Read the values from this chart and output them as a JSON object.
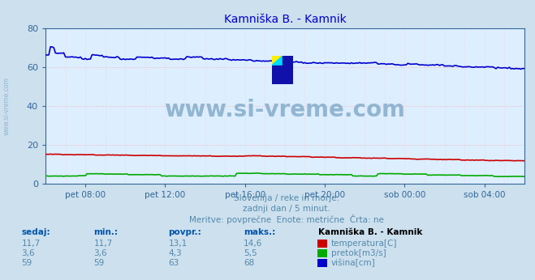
{
  "title": "Kamniška B. - Kamnik",
  "title_color": "#0000cc",
  "bg_color": "#cce0ee",
  "plot_bg_color": "#ddeeff",
  "grid_color_h": "#ffaaaa",
  "grid_color_v": "#ffcccc",
  "watermark_text": "www.si-vreme.com",
  "watermark_color": "#8ab0cc",
  "subtitle_lines": [
    "Slovenija / reke in morje.",
    "zadnji dan / 5 minut.",
    "Meritve: povprečne  Enote: metrične  Črta: ne"
  ],
  "subtitle_color": "#5588aa",
  "xlabel_color": "#5588aa",
  "tick_color": "#336699",
  "axis_color": "#336699",
  "ylim": [
    0,
    80
  ],
  "yticks": [
    0,
    20,
    40,
    60,
    80
  ],
  "xlim": [
    0,
    288
  ],
  "xtick_positions": [
    24,
    72,
    120,
    168,
    216,
    264
  ],
  "xtick_labels": [
    "pet 08:00",
    "pet 12:00",
    "pet 16:00",
    "pet 20:00",
    "sob 00:00",
    "sob 04:00"
  ],
  "arrow_color": "#cc0000",
  "temp_color": "#cc0000",
  "pretok_color": "#00aa00",
  "visina_color": "#0000cc",
  "table_headers": [
    "sedaj:",
    "min.:",
    "povpr.:",
    "maks.:"
  ],
  "table_header_color": "#0055aa",
  "series_name": "Kamniška B. - Kamnik",
  "rows": [
    {
      "label": "temperatura[C]",
      "color": "#cc0000",
      "sedaj": "11,7",
      "min": "11,7",
      "povpr": "13,1",
      "maks": "14,6"
    },
    {
      "label": "pretok[m3/s]",
      "color": "#00aa00",
      "sedaj": "3,6",
      "min": "3,6",
      "povpr": "4,3",
      "maks": "5,5"
    },
    {
      "label": "višina[cm]",
      "color": "#0000cc",
      "sedaj": "59",
      "min": "59",
      "povpr": "63",
      "maks": "68"
    }
  ]
}
